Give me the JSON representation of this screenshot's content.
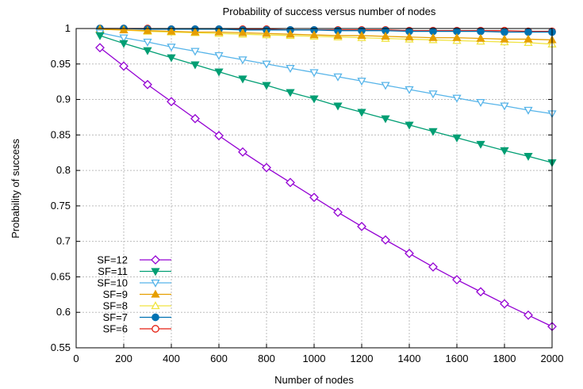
{
  "chart_data": {
    "type": "line",
    "title": "Probability of success versus number of nodes",
    "xlabel": "Number of nodes",
    "ylabel": "Probability of success",
    "xlim": [
      0,
      2000
    ],
    "ylim": [
      0.55,
      1.0
    ],
    "xticks": [
      0,
      200,
      400,
      600,
      800,
      1000,
      1200,
      1400,
      1600,
      1800,
      2000
    ],
    "xtick_labels": [
      "0",
      "200",
      "400",
      "600",
      "800",
      "1000",
      "1200",
      "1400",
      "1600",
      "1800",
      "2000"
    ],
    "yticks": [
      0.55,
      0.6,
      0.65,
      0.7,
      0.75,
      0.8,
      0.85,
      0.9,
      0.95,
      1.0
    ],
    "ytick_labels": [
      "0.55",
      "0.6",
      "0.65",
      "0.7",
      "0.75",
      "0.8",
      "0.85",
      "0.9",
      "0.95",
      "1"
    ],
    "grid": true,
    "legend_position": "bottom-left",
    "x": [
      100,
      200,
      300,
      400,
      500,
      600,
      700,
      800,
      900,
      1000,
      1100,
      1200,
      1300,
      1400,
      1500,
      1600,
      1700,
      1800,
      1900,
      2000
    ],
    "series": [
      {
        "name": "SF=12",
        "color": "#9400d3",
        "marker": "diamond-open",
        "values": [
          0.973,
          0.947,
          0.921,
          0.897,
          0.873,
          0.849,
          0.826,
          0.804,
          0.783,
          0.762,
          0.741,
          0.721,
          0.702,
          0.683,
          0.664,
          0.646,
          0.629,
          0.612,
          0.596,
          0.58
        ]
      },
      {
        "name": "SF=11",
        "color": "#009e73",
        "marker": "triangle-down-filled",
        "values": [
          0.99,
          0.979,
          0.969,
          0.959,
          0.949,
          0.939,
          0.929,
          0.92,
          0.91,
          0.901,
          0.891,
          0.882,
          0.873,
          0.864,
          0.855,
          0.846,
          0.837,
          0.828,
          0.82,
          0.811
        ]
      },
      {
        "name": "SF=10",
        "color": "#56b4e9",
        "marker": "triangle-down-open",
        "values": [
          0.994,
          0.987,
          0.981,
          0.974,
          0.968,
          0.962,
          0.956,
          0.95,
          0.944,
          0.938,
          0.932,
          0.926,
          0.92,
          0.914,
          0.908,
          0.902,
          0.896,
          0.891,
          0.885,
          0.88
        ]
      },
      {
        "name": "SF=9",
        "color": "#e69f00",
        "marker": "triangle-up-filled",
        "values": [
          0.999,
          0.998,
          0.997,
          0.996,
          0.995,
          0.995,
          0.994,
          0.993,
          0.992,
          0.991,
          0.99,
          0.99,
          0.989,
          0.988,
          0.987,
          0.987,
          0.986,
          0.985,
          0.985,
          0.984
        ]
      },
      {
        "name": "SF=8",
        "color": "#f0e442",
        "marker": "triangle-up-open",
        "values": [
          0.999,
          0.998,
          0.996,
          0.995,
          0.994,
          0.993,
          0.992,
          0.991,
          0.99,
          0.989,
          0.988,
          0.987,
          0.986,
          0.985,
          0.984,
          0.983,
          0.982,
          0.981,
          0.98,
          0.978
        ]
      },
      {
        "name": "SF=7",
        "color": "#0072b2",
        "marker": "circle-filled",
        "values": [
          1.0,
          1.0,
          0.999,
          0.999,
          0.999,
          0.999,
          0.998,
          0.998,
          0.998,
          0.998,
          0.997,
          0.997,
          0.997,
          0.996,
          0.996,
          0.996,
          0.996,
          0.995,
          0.995,
          0.995
        ]
      },
      {
        "name": "SF=6",
        "color": "#e51e10",
        "marker": "circle-open",
        "values": [
          1.0,
          1.0,
          1.0,
          0.999,
          0.999,
          0.999,
          0.999,
          0.999,
          0.998,
          0.998,
          0.998,
          0.998,
          0.998,
          0.997,
          0.997,
          0.997,
          0.997,
          0.997,
          0.996,
          0.996
        ]
      }
    ]
  }
}
